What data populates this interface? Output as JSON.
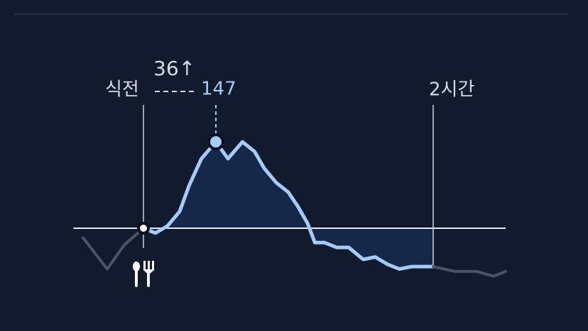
{
  "chart_data": {
    "type": "line",
    "meal_label": "식전",
    "end_label": "2시간",
    "rise": {
      "value": 36,
      "label": "36↑"
    },
    "peak": 147,
    "peak_x": 30,
    "baseline": 111,
    "meal_x": 0,
    "end_x": 120,
    "xlim": [
      -29,
      150
    ],
    "ylim": [
      85,
      150
    ],
    "area_color": "#16284a",
    "series": [
      {
        "color": "#4a5466",
        "x": [
          -25,
          -15,
          -8,
          0
        ],
        "values": [
          107,
          94,
          104,
          111
        ]
      },
      {
        "color": "#a6cbf7",
        "x": [
          0,
          5,
          10,
          15,
          19,
          24,
          30,
          35,
          41,
          46,
          50,
          55,
          60,
          64,
          68,
          71,
          75,
          80,
          85,
          91,
          96,
          101,
          106,
          111,
          120
        ],
        "values": [
          111,
          109,
          112,
          118,
          129,
          140,
          147,
          140,
          147,
          143,
          136,
          130,
          126,
          120,
          113,
          105,
          105,
          103,
          103,
          98,
          99,
          96,
          94,
          95,
          95
        ]
      },
      {
        "color": "#4a5466",
        "x": [
          120,
          129,
          138,
          145,
          150
        ],
        "values": [
          95,
          93,
          93,
          91,
          93
        ]
      }
    ]
  }
}
